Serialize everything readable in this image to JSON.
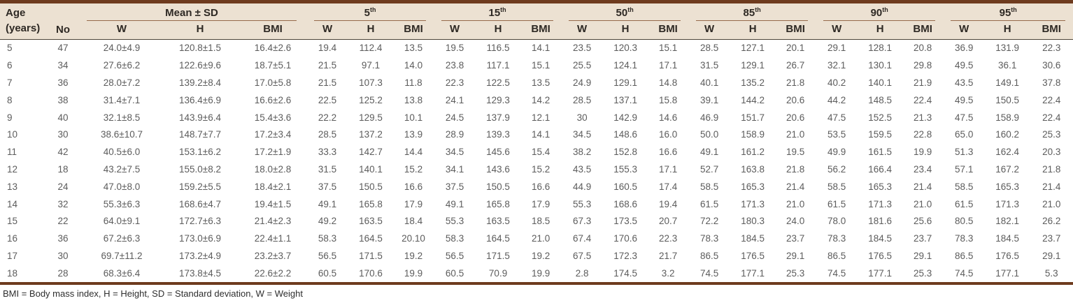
{
  "colors": {
    "header_bg": "#ece1d2",
    "border_dark": "#6e3b1e",
    "group_underline": "#96684a",
    "header_text": "#2e2924",
    "data_text": "#5c5c5c",
    "footnote_text": "#2e2e2e",
    "header_divider": "#4d4438"
  },
  "table": {
    "header": {
      "age_line1": "Age",
      "age_line2": "(years)",
      "no_label": "No",
      "groups": [
        {
          "label": "Mean ± SD",
          "sup": ""
        },
        {
          "label": "5",
          "sup": "th"
        },
        {
          "label": "15",
          "sup": "th"
        },
        {
          "label": "50",
          "sup": "th"
        },
        {
          "label": "85",
          "sup": "th"
        },
        {
          "label": "90",
          "sup": "th"
        },
        {
          "label": "95",
          "sup": "th"
        }
      ],
      "subcols": [
        "W",
        "H",
        "BMI"
      ]
    },
    "rows": [
      {
        "age": "5",
        "no": "47",
        "mean": [
          "24.0±4.9",
          "120.8±1.5",
          "16.4±2.6"
        ],
        "p5": [
          "19.4",
          "112.4",
          "13.5"
        ],
        "p15": [
          "19.5",
          "116.5",
          "14.1"
        ],
        "p50": [
          "23.5",
          "120.3",
          "15.1"
        ],
        "p85": [
          "28.5",
          "127.1",
          "20.1"
        ],
        "p90": [
          "29.1",
          "128.1",
          "20.8"
        ],
        "p95": [
          "36.9",
          "131.9",
          "22.3"
        ]
      },
      {
        "age": "6",
        "no": "34",
        "mean": [
          "27.6±6.2",
          "122.6±9.6",
          "18.7±5.1"
        ],
        "p5": [
          "21.5",
          "97.1",
          "14.0"
        ],
        "p15": [
          "23.8",
          "117.1",
          "15.1"
        ],
        "p50": [
          "25.5",
          "124.1",
          "17.1"
        ],
        "p85": [
          "31.5",
          "129.1",
          "26.7"
        ],
        "p90": [
          "32.1",
          "130.1",
          "29.8"
        ],
        "p95": [
          "49.5",
          "36.1",
          "30.6"
        ]
      },
      {
        "age": "7",
        "no": "36",
        "mean": [
          "28.0±7.2",
          "139.2±8.4",
          "17.0±5.8"
        ],
        "p5": [
          "21.5",
          "107.3",
          "11.8"
        ],
        "p15": [
          "22.3",
          "122.5",
          "13.5"
        ],
        "p50": [
          "24.9",
          "129.1",
          "14.8"
        ],
        "p85": [
          "40.1",
          "135.2",
          "21.8"
        ],
        "p90": [
          "40.2",
          "140.1",
          "21.9"
        ],
        "p95": [
          "43.5",
          "149.1",
          "37.8"
        ]
      },
      {
        "age": "8",
        "no": "38",
        "mean": [
          "31.4±7.1",
          "136.4±6.9",
          "16.6±2.6"
        ],
        "p5": [
          "22.5",
          "125.2",
          "13.8"
        ],
        "p15": [
          "24.1",
          "129.3",
          "14.2"
        ],
        "p50": [
          "28.5",
          "137.1",
          "15.8"
        ],
        "p85": [
          "39.1",
          "144.2",
          "20.6"
        ],
        "p90": [
          "44.2",
          "148.5",
          "22.4"
        ],
        "p95": [
          "49.5",
          "150.5",
          "22.4"
        ]
      },
      {
        "age": "9",
        "no": "40",
        "mean": [
          "32.1±8.5",
          "143.9±6.4",
          "15.4±3.6"
        ],
        "p5": [
          "22.2",
          "129.5",
          "10.1"
        ],
        "p15": [
          "24.5",
          "137.9",
          "12.1"
        ],
        "p50": [
          "30",
          "142.9",
          "14.6"
        ],
        "p85": [
          "46.9",
          "151.7",
          "20.6"
        ],
        "p90": [
          "47.5",
          "152.5",
          "21.3"
        ],
        "p95": [
          "47.5",
          "158.9",
          "22.4"
        ]
      },
      {
        "age": "10",
        "no": "30",
        "mean": [
          "38.6±10.7",
          "148.7±7.7",
          "17.2±3.4"
        ],
        "p5": [
          "28.5",
          "137.2",
          "13.9"
        ],
        "p15": [
          "28.9",
          "139.3",
          "14.1"
        ],
        "p50": [
          "34.5",
          "148.6",
          "16.0"
        ],
        "p85": [
          "50.0",
          "158.9",
          "21.0"
        ],
        "p90": [
          "53.5",
          "159.5",
          "22.8"
        ],
        "p95": [
          "65.0",
          "160.2",
          "25.3"
        ]
      },
      {
        "age": "11",
        "no": "42",
        "mean": [
          "40.5±6.0",
          "153.1±6.2",
          "17.2±1.9"
        ],
        "p5": [
          "33.3",
          "142.7",
          "14.4"
        ],
        "p15": [
          "34.5",
          "145.6",
          "15.4"
        ],
        "p50": [
          "38.2",
          "152.8",
          "16.6"
        ],
        "p85": [
          "49.1",
          "161.2",
          "19.5"
        ],
        "p90": [
          "49.9",
          "161.5",
          "19.9"
        ],
        "p95": [
          "51.3",
          "162.4",
          "20.3"
        ]
      },
      {
        "age": "12",
        "no": "18",
        "mean": [
          "43.2±7.5",
          "155.0±8.2",
          "18.0±2.8"
        ],
        "p5": [
          "31.5",
          "140.1",
          "15.2"
        ],
        "p15": [
          "34.1",
          "143.6",
          "15.2"
        ],
        "p50": [
          "43.5",
          "155.3",
          "17.1"
        ],
        "p85": [
          "52.7",
          "163.8",
          "21.8"
        ],
        "p90": [
          "56.2",
          "166.4",
          "23.4"
        ],
        "p95": [
          "57.1",
          "167.2",
          "21.8"
        ]
      },
      {
        "age": "13",
        "no": "24",
        "mean": [
          "47.0±8.0",
          "159.2±5.5",
          "18.4±2.1"
        ],
        "p5": [
          "37.5",
          "150.5",
          "16.6"
        ],
        "p15": [
          "37.5",
          "150.5",
          "16.6"
        ],
        "p50": [
          "44.9",
          "160.5",
          "17.4"
        ],
        "p85": [
          "58.5",
          "165.3",
          "21.4"
        ],
        "p90": [
          "58.5",
          "165.3",
          "21.4"
        ],
        "p95": [
          "58.5",
          "165.3",
          "21.4"
        ]
      },
      {
        "age": "14",
        "no": "32",
        "mean": [
          "55.3±6.3",
          "168.6±4.7",
          "19.4±1.5"
        ],
        "p5": [
          "49.1",
          "165.8",
          "17.9"
        ],
        "p15": [
          "49.1",
          "165.8",
          "17.9"
        ],
        "p50": [
          "55.3",
          "168.6",
          "19.4"
        ],
        "p85": [
          "61.5",
          "171.3",
          "21.0"
        ],
        "p90": [
          "61.5",
          "171.3",
          "21.0"
        ],
        "p95": [
          "61.5",
          "171.3",
          "21.0"
        ]
      },
      {
        "age": "15",
        "no": "22",
        "mean": [
          "64.0±9.1",
          "172.7±6.3",
          "21.4±2.3"
        ],
        "p5": [
          "49.2",
          "163.5",
          "18.4"
        ],
        "p15": [
          "55.3",
          "163.5",
          "18.5"
        ],
        "p50": [
          "67.3",
          "173.5",
          "20.7"
        ],
        "p85": [
          "72.2",
          "180.3",
          "24.0"
        ],
        "p90": [
          "78.0",
          "181.6",
          "25.6"
        ],
        "p95": [
          "80.5",
          "182.1",
          "26.2"
        ]
      },
      {
        "age": "16",
        "no": "36",
        "mean": [
          "67.2±6.3",
          "173.0±6.9",
          "22.4±1.1"
        ],
        "p5": [
          "58.3",
          "164.5",
          "20.10"
        ],
        "p15": [
          "58.3",
          "164.5",
          "21.0"
        ],
        "p50": [
          "67.4",
          "170.6",
          "22.3"
        ],
        "p85": [
          "78.3",
          "184.5",
          "23.7"
        ],
        "p90": [
          "78.3",
          "184.5",
          "23.7"
        ],
        "p95": [
          "78.3",
          "184.5",
          "23.7"
        ]
      },
      {
        "age": "17",
        "no": "30",
        "mean": [
          "69.7±11.2",
          "173.2±4.9",
          "23.2±3.7"
        ],
        "p5": [
          "56.5",
          "171.5",
          "19.2"
        ],
        "p15": [
          "56.5",
          "171.5",
          "19.2"
        ],
        "p50": [
          "67.5",
          "172.3",
          "21.7"
        ],
        "p85": [
          "86.5",
          "176.5",
          "29.1"
        ],
        "p90": [
          "86.5",
          "176.5",
          "29.1"
        ],
        "p95": [
          "86.5",
          "176.5",
          "29.1"
        ]
      },
      {
        "age": "18",
        "no": "28",
        "mean": [
          "68.3±6.4",
          "173.8±4.5",
          "22.6±2.2"
        ],
        "p5": [
          "60.5",
          "170.6",
          "19.9"
        ],
        "p15": [
          "60.5",
          "70.9",
          "19.9"
        ],
        "p50": [
          "2.8",
          "174.5",
          "3.2"
        ],
        "p85": [
          "74.5",
          "177.1",
          "25.3"
        ],
        "p90": [
          "74.5",
          "177.1",
          "25.3"
        ],
        "p95": [
          "74.5",
          "177.1",
          "5.3"
        ]
      }
    ],
    "footnote": "BMI = Body mass index, H = Height, SD = Standard deviation, W = Weight"
  }
}
